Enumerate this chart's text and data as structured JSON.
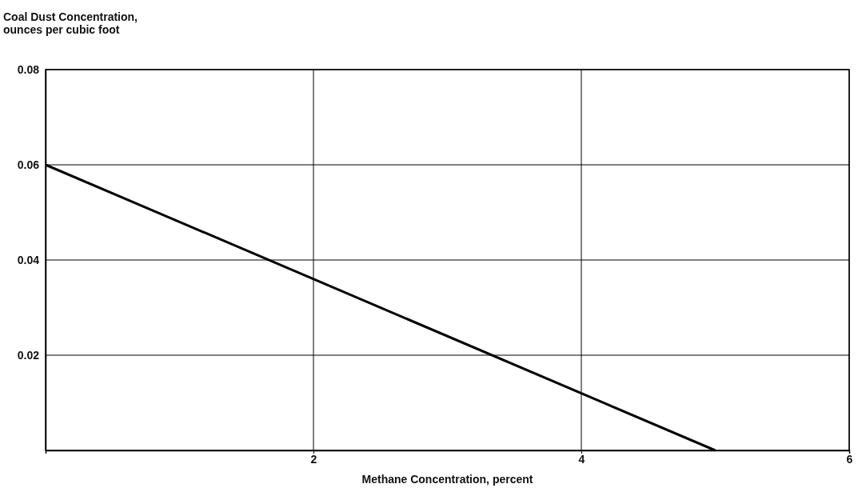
{
  "chart_data": {
    "type": "line",
    "xlabel": "Methane Concentration, percent",
    "ylabel": "Coal Dust Concentration, ounces per cubic foot",
    "x": [
      0,
      5
    ],
    "series": [
      {
        "color": "#000000",
        "values": [
          0.06,
          0
        ]
      }
    ],
    "xlim": [
      0,
      6
    ],
    "xticks": [
      2,
      4,
      6
    ],
    "ylim": [
      0,
      0.08
    ],
    "yticks": [
      0.02,
      0.04,
      0.06,
      0.08
    ],
    "grid": true,
    "marker": "none",
    "line_style": "solid"
  }
}
